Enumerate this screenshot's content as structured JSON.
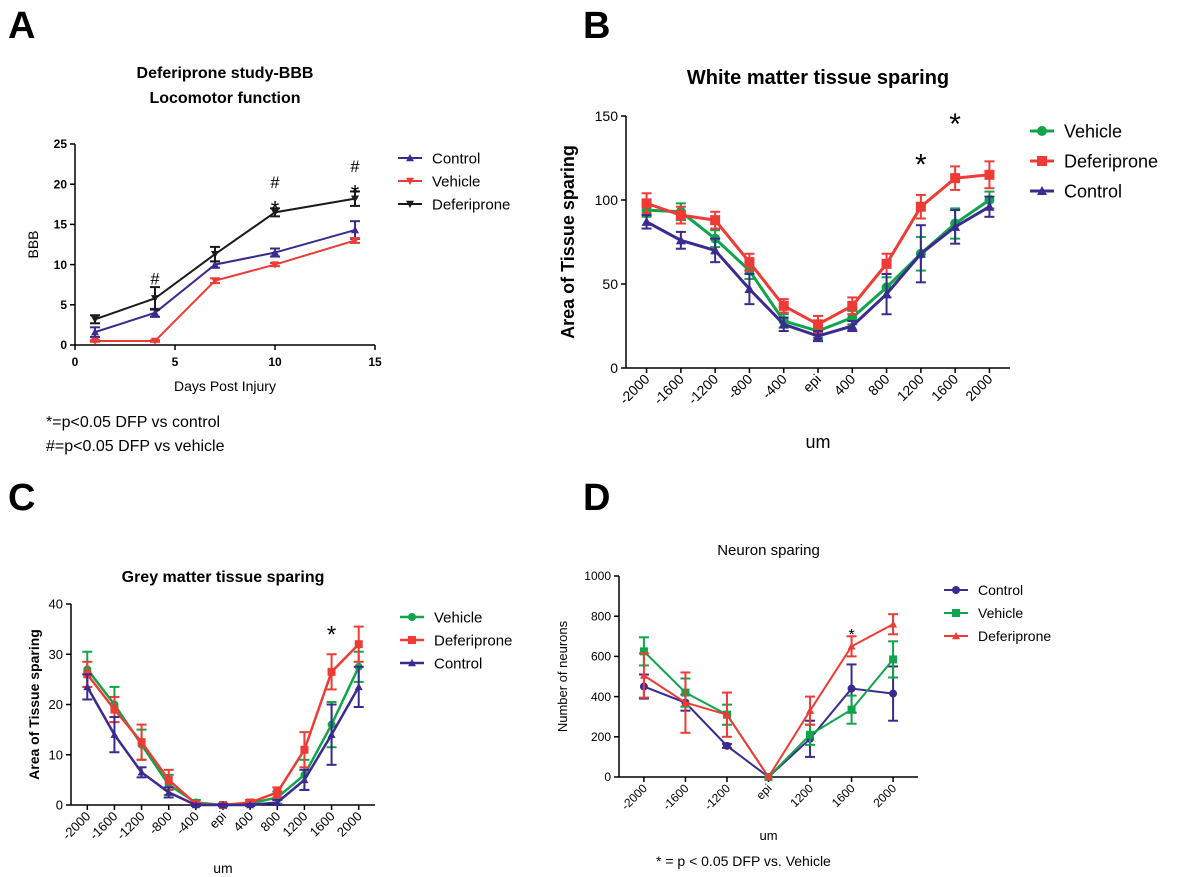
{
  "panels": {
    "A": {
      "letter": "A",
      "notes": [
        "*=p<0.05 DFP vs control",
        "#=p<0.05 DFP vs vehicle"
      ]
    },
    "B": {
      "letter": "B"
    },
    "C": {
      "letter": "C"
    },
    "D": {
      "letter": "D",
      "notes": [
        "* = p < 0.05 DFP vs. Vehicle"
      ]
    }
  },
  "colors": {
    "control": "#3b2a8f",
    "vehicle": "#ef3b36",
    "deferiprone_a": "#1a1a1a",
    "vehicle_green": "#10a54a",
    "deferiprone_red": "#ef3b36"
  },
  "chart_data": [
    {
      "id": "A",
      "type": "line",
      "title": "Deferiprone study-BBB",
      "subtitle": "Locomotor function",
      "xlabel": "Days Post Injury",
      "ylabel": "BBB",
      "xlim": [
        0,
        15
      ],
      "ylim": [
        0,
        25
      ],
      "xticks": [
        "0",
        "5",
        "10",
        "15"
      ],
      "yticks": [
        "0",
        "5",
        "10",
        "15",
        "20",
        "25"
      ],
      "legend": "right",
      "series": [
        {
          "name": "Control",
          "color": "#3b2a8f",
          "marker": "triangle-up",
          "x": [
            1,
            4,
            7,
            10,
            14
          ],
          "y": [
            1.6,
            4.0,
            10.0,
            11.5,
            14.3
          ],
          "err": [
            0.6,
            0.5,
            0.4,
            0.5,
            1.1
          ]
        },
        {
          "name": "Vehicle",
          "color": "#ef3b36",
          "marker": "triangle-down",
          "x": [
            1,
            4,
            7,
            10,
            14
          ],
          "y": [
            0.5,
            0.5,
            8.0,
            10.0,
            13.0
          ],
          "err": [
            0.1,
            0.1,
            0.3,
            0.2,
            0.3
          ]
        },
        {
          "name": "Deferiprone",
          "color": "#1a1a1a",
          "marker": "triangle-down",
          "x": [
            1,
            4,
            7,
            10,
            14
          ],
          "y": [
            3.2,
            5.8,
            11.3,
            16.5,
            18.2
          ],
          "err": [
            0.5,
            1.4,
            0.9,
            0.5,
            0.9
          ]
        }
      ],
      "annotations": [
        {
          "x": 4,
          "y": 7.5,
          "text": "#"
        },
        {
          "x": 10,
          "y": 19.5,
          "text": "#"
        },
        {
          "x": 10,
          "y": 17.5,
          "text": "*"
        },
        {
          "x": 14,
          "y": 21.5,
          "text": "#"
        },
        {
          "x": 14,
          "y": 19.5,
          "text": "*"
        }
      ]
    },
    {
      "id": "B",
      "type": "line",
      "title": "White matter tissue sparing",
      "xlabel": "um",
      "ylabel": "Area of Tissue sparing",
      "categories": [
        "-2000",
        "-1600",
        "-1200",
        "-800",
        "-400",
        "epi",
        "400",
        "800",
        "1200",
        "1600",
        "2000"
      ],
      "ylim": [
        0,
        150
      ],
      "yticks": [
        "0",
        "50",
        "100",
        "150"
      ],
      "legend": "right",
      "series": [
        {
          "name": "Vehicle",
          "color": "#10a54a",
          "marker": "circle",
          "values": [
            94,
            93,
            77,
            58,
            28,
            22,
            30,
            48,
            68,
            86,
            100
          ],
          "err": [
            4,
            5,
            5,
            5,
            4,
            4,
            4,
            6,
            10,
            9,
            5
          ]
        },
        {
          "name": "Deferiprone",
          "color": "#ef3b36",
          "marker": "square",
          "values": [
            98,
            91,
            88,
            63,
            37,
            26,
            37,
            62,
            96,
            113,
            115
          ],
          "err": [
            6,
            5,
            5,
            5,
            4,
            5,
            5,
            6,
            7,
            7,
            8
          ]
        },
        {
          "name": "Control",
          "color": "#3b2a8f",
          "marker": "triangle-up",
          "values": [
            87,
            76,
            70,
            47,
            26,
            19,
            25,
            44,
            68,
            84,
            96
          ],
          "err": [
            4,
            5,
            7,
            9,
            4,
            3,
            3,
            12,
            17,
            10,
            6
          ]
        }
      ],
      "annotations": [
        {
          "category": "1200",
          "y": 125,
          "text": "*"
        },
        {
          "category": "1600",
          "y": 149,
          "text": "*"
        }
      ]
    },
    {
      "id": "C",
      "type": "line",
      "title": "Grey matter tissue sparing",
      "xlabel": "um",
      "ylabel": "Area of Tissue sparing",
      "categories": [
        "-2000",
        "-1600",
        "-1200",
        "-800",
        "-400",
        "epi",
        "400",
        "800",
        "1200",
        "1600",
        "2000"
      ],
      "ylim": [
        0,
        40
      ],
      "yticks": [
        "0",
        "10",
        "20",
        "30",
        "40"
      ],
      "legend": "right",
      "series": [
        {
          "name": "Vehicle",
          "color": "#10a54a",
          "marker": "circle",
          "values": [
            27,
            20,
            12,
            4,
            0.5,
            0,
            0.3,
            1.5,
            6,
            16,
            27.5
          ],
          "err": [
            3.5,
            3.5,
            3,
            2,
            0.5,
            0.3,
            0.3,
            1.2,
            3,
            4.5,
            3
          ]
        },
        {
          "name": "Deferiprone",
          "color": "#ef3b36",
          "marker": "square",
          "values": [
            26,
            19,
            12.5,
            5,
            0.2,
            0,
            0.5,
            2.5,
            11,
            26.5,
            32
          ],
          "err": [
            2.5,
            2.5,
            3.5,
            2,
            0.3,
            0.3,
            0.5,
            1,
            3.5,
            3.5,
            3.5
          ]
        },
        {
          "name": "Control",
          "color": "#3b2a8f",
          "marker": "triangle-up",
          "values": [
            23.5,
            14,
            6.5,
            2.5,
            0,
            0,
            0,
            0.5,
            5,
            14,
            23.5
          ],
          "err": [
            2.5,
            3.5,
            1,
            1,
            0.2,
            0.2,
            0.2,
            0.5,
            2,
            6,
            4
          ]
        }
      ],
      "annotations": [
        {
          "category": "1600",
          "y": 35,
          "text": "*"
        }
      ]
    },
    {
      "id": "D",
      "type": "line",
      "title": "Neuron sparing",
      "xlabel": "um",
      "ylabel": "Number of neurons",
      "categories": [
        "-2000",
        "-1600",
        "-1200",
        "epi",
        "1200",
        "1600",
        "2000"
      ],
      "ylim": [
        0,
        1000
      ],
      "yticks": [
        "0",
        "200",
        "400",
        "600",
        "800",
        "1000"
      ],
      "legend": "right",
      "series": [
        {
          "name": "Control",
          "color": "#3b2a8f",
          "marker": "circle",
          "values": [
            450,
            370,
            155,
            0,
            190,
            440,
            415
          ],
          "err": [
            60,
            40,
            10,
            0,
            90,
            120,
            135
          ]
        },
        {
          "name": "Vehicle",
          "color": "#10a54a",
          "marker": "square",
          "values": [
            625,
            420,
            310,
            0,
            210,
            335,
            585
          ],
          "err": [
            70,
            70,
            50,
            0,
            50,
            70,
            90
          ]
        },
        {
          "name": "Deferiprone",
          "color": "#ef3b36",
          "marker": "triangle-up",
          "values": [
            505,
            370,
            310,
            0,
            330,
            650,
            760
          ],
          "err": [
            110,
            150,
            110,
            0,
            70,
            50,
            50
          ]
        }
      ],
      "annotations": [
        {
          "category": "1600",
          "y": 725,
          "text": "*"
        }
      ]
    }
  ]
}
